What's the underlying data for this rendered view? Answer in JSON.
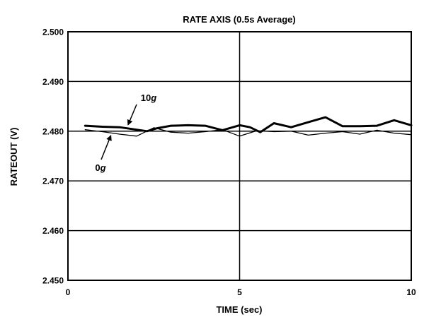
{
  "chart_data": {
    "type": "line",
    "title": "RATE AXIS (0.5s Average)",
    "xlabel": "TIME (sec)",
    "ylabel": "RATEOUT (V)",
    "xlim": [
      0,
      10
    ],
    "ylim": [
      2.45,
      2.5
    ],
    "x_ticks": [
      "0",
      "5",
      "10"
    ],
    "y_ticks": [
      "2.450",
      "2.460",
      "2.470",
      "2.480",
      "2.490",
      "2.500"
    ],
    "grid": true,
    "series": [
      {
        "name": "10g",
        "style": "thick",
        "x": [
          0.5,
          1.0,
          1.5,
          2.0,
          2.3,
          2.6,
          3.0,
          3.5,
          4.0,
          4.5,
          5.0,
          5.3,
          5.6,
          6.0,
          6.5,
          7.0,
          7.5,
          8.0,
          8.5,
          9.0,
          9.5,
          10.0
        ],
        "values": [
          2.4811,
          2.4809,
          2.4808,
          2.4803,
          2.48,
          2.4806,
          2.4811,
          2.4812,
          2.4811,
          2.4802,
          2.4812,
          2.4808,
          2.4798,
          2.4816,
          2.4808,
          2.4818,
          2.4828,
          2.481,
          2.481,
          2.4811,
          2.4822,
          2.4812
        ]
      },
      {
        "name": "0g",
        "style": "thin",
        "x": [
          0.5,
          1.0,
          1.5,
          2.0,
          2.5,
          3.0,
          3.5,
          4.0,
          4.5,
          5.0,
          5.5,
          6.0,
          6.5,
          7.0,
          7.5,
          8.0,
          8.5,
          9.0,
          9.5,
          10.0
        ],
        "values": [
          2.4803,
          2.4799,
          2.4794,
          2.479,
          2.4807,
          2.4798,
          2.4796,
          2.4799,
          2.4803,
          2.479,
          2.4801,
          2.4799,
          2.48,
          2.4792,
          2.4796,
          2.4799,
          2.4794,
          2.4802,
          2.4796,
          2.4793
        ]
      }
    ],
    "annotations": [
      {
        "label": "10",
        "suffix": "g",
        "series": "10g"
      },
      {
        "label": "0",
        "suffix": "g",
        "series": "0g"
      }
    ]
  }
}
